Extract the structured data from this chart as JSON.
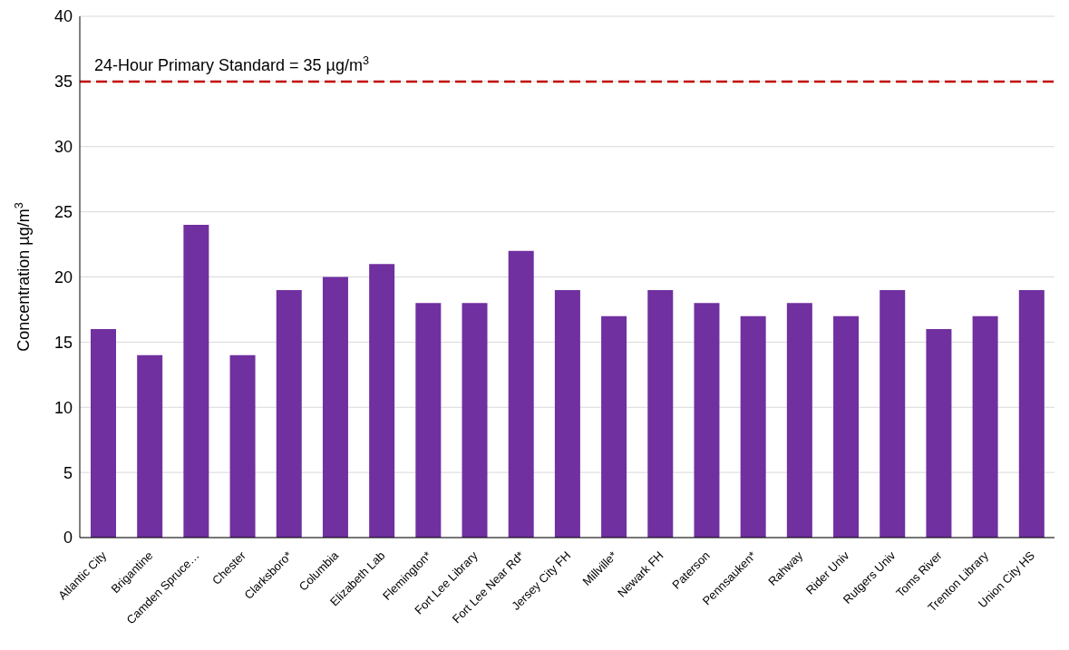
{
  "chart_data": {
    "type": "bar",
    "ylabel": "Concentration µg/m$^{3}$",
    "categories": [
      "Atlantic City",
      "Brigantine",
      "Camden Spruce…",
      "Chester",
      "Clarksboro*",
      "Columbia",
      "Elizabeth Lab",
      "Flemington*",
      "Fort Lee Library",
      "Fort Lee Near Rd*",
      "Jersey City FH",
      "Millville*",
      "Newark FH",
      "Paterson",
      "Pennsauken*",
      "Rahway",
      "Rider Univ",
      "Rutgers Univ",
      "Toms River",
      "Trenton Library",
      "Union City HS"
    ],
    "values": [
      16,
      14,
      24,
      14,
      19,
      20,
      21,
      18,
      18,
      22,
      19,
      17,
      19,
      18,
      17,
      18,
      17,
      19,
      16,
      17,
      19
    ],
    "color": "#7030a0",
    "ylim": [
      0,
      40
    ],
    "yticks": [
      0,
      5,
      10,
      15,
      20,
      25,
      30,
      35,
      40
    ],
    "grid": "y",
    "ref_lines": [
      {
        "axis": "y",
        "value": 35,
        "label": "24-Hour Primary Standard = 35 µg/m$^{3}$",
        "color": "#c00000",
        "line_style": "dashed"
      }
    ]
  }
}
